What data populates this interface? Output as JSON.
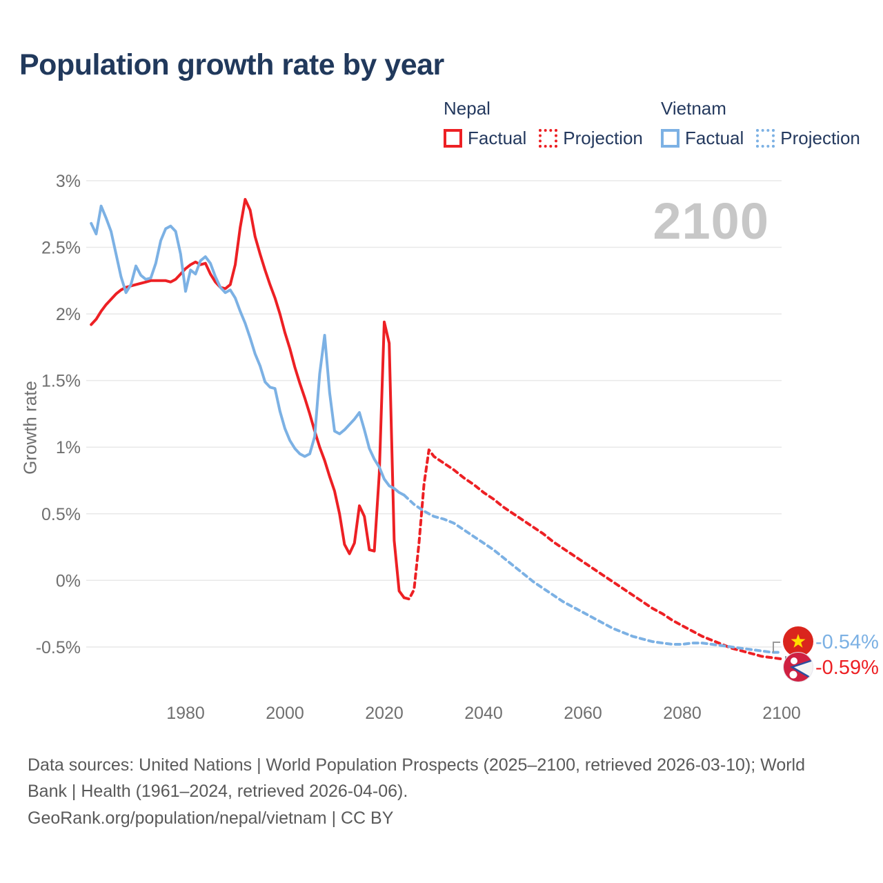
{
  "title": "Population growth rate by year",
  "watermark": "2100",
  "colors": {
    "nepal": "#ed2024",
    "vietnam": "#7cb1e4",
    "title_text": "#21395c",
    "legend_text": "#24395e",
    "axis_text": "#6f6f6f",
    "grid": "#e8e8e8",
    "watermark": "#c7c7c7",
    "connector": "#999999",
    "nepal_flag_crimson": "#cf2041",
    "nepal_flag_blue": "#2b4d9e",
    "vietnam_flag_red": "#da251d",
    "vietnam_flag_star": "#ffdf00"
  },
  "legend": {
    "groups": [
      {
        "name": "Nepal",
        "color": "#ed2024",
        "items": [
          {
            "label": "Factual",
            "style": "solid"
          },
          {
            "label": "Projection",
            "style": "dotted"
          }
        ]
      },
      {
        "name": "Vietnam",
        "color": "#7cb1e4",
        "items": [
          {
            "label": "Factual",
            "style": "solid"
          },
          {
            "label": "Projection",
            "style": "dotted"
          }
        ]
      }
    ]
  },
  "end_labels": [
    {
      "country": "Vietnam",
      "value": "-0.54%",
      "flag": "vietnam-flag-icon"
    },
    {
      "country": "Nepal",
      "value": "-0.59%",
      "flag": "nepal-flag-icon"
    }
  ],
  "caption": {
    "line1": "Data sources: United Nations | World Population Prospects (2025–2100, retrieved 2026-03-10); World Bank | Health (1961–2024, retrieved 2026-04-06).",
    "line2": "GeoRank.org/population/nepal/vietnam | CC BY"
  },
  "chart_data": {
    "type": "line",
    "title": "Population growth rate by year",
    "xlabel": "",
    "ylabel": "Growth rate",
    "grid": "horizontal-only",
    "legend_position": "top-right",
    "xlim": [
      1960,
      2114
    ],
    "ylim": [
      -0.75,
      3.05
    ],
    "x_ticks": [
      1980,
      2000,
      2020,
      2040,
      2060,
      2080,
      2100
    ],
    "y_ticks": {
      "labels": [
        "3%",
        "2.5%",
        "2%",
        "1.5%",
        "1%",
        "0.5%",
        "0%",
        "-0.5%"
      ],
      "values": [
        3,
        2.5,
        2,
        1.5,
        1,
        0.5,
        0,
        -0.5
      ]
    },
    "series": [
      {
        "name": "Nepal Factual",
        "country": "Nepal",
        "style": "solid",
        "color": "#ed2024",
        "points": [
          [
            1961,
            1.92
          ],
          [
            1962,
            1.96
          ],
          [
            1963,
            2.02
          ],
          [
            1964,
            2.07
          ],
          [
            1965,
            2.11
          ],
          [
            1966,
            2.15
          ],
          [
            1967,
            2.18
          ],
          [
            1968,
            2.2
          ],
          [
            1969,
            2.21
          ],
          [
            1970,
            2.22
          ],
          [
            1971,
            2.23
          ],
          [
            1972,
            2.24
          ],
          [
            1973,
            2.25
          ],
          [
            1974,
            2.25
          ],
          [
            1975,
            2.25
          ],
          [
            1976,
            2.25
          ],
          [
            1977,
            2.24
          ],
          [
            1978,
            2.26
          ],
          [
            1979,
            2.3
          ],
          [
            1980,
            2.34
          ],
          [
            1981,
            2.37
          ],
          [
            1982,
            2.39
          ],
          [
            1983,
            2.37
          ],
          [
            1984,
            2.38
          ],
          [
            1985,
            2.3
          ],
          [
            1986,
            2.24
          ],
          [
            1987,
            2.2
          ],
          [
            1988,
            2.19
          ],
          [
            1989,
            2.22
          ],
          [
            1990,
            2.37
          ],
          [
            1991,
            2.65
          ],
          [
            1992,
            2.86
          ],
          [
            1993,
            2.78
          ],
          [
            1994,
            2.58
          ],
          [
            1995,
            2.45
          ],
          [
            1996,
            2.33
          ],
          [
            1997,
            2.22
          ],
          [
            1998,
            2.12
          ],
          [
            1999,
            2.0
          ],
          [
            2000,
            1.86
          ],
          [
            2001,
            1.74
          ],
          [
            2002,
            1.6
          ],
          [
            2003,
            1.48
          ],
          [
            2004,
            1.37
          ],
          [
            2005,
            1.25
          ],
          [
            2006,
            1.12
          ],
          [
            2007,
            1.0
          ],
          [
            2008,
            0.9
          ],
          [
            2009,
            0.78
          ],
          [
            2010,
            0.67
          ],
          [
            2011,
            0.5
          ],
          [
            2012,
            0.27
          ],
          [
            2013,
            0.2
          ],
          [
            2014,
            0.28
          ],
          [
            2015,
            0.56
          ],
          [
            2016,
            0.48
          ],
          [
            2017,
            0.23
          ],
          [
            2018,
            0.22
          ],
          [
            2019,
            0.8
          ],
          [
            2020,
            1.94
          ],
          [
            2021,
            1.78
          ],
          [
            2022,
            0.3
          ],
          [
            2023,
            -0.08
          ],
          [
            2024,
            -0.13
          ]
        ]
      },
      {
        "name": "Nepal Projection",
        "country": "Nepal",
        "style": "dashed",
        "color": "#ed2024",
        "points": [
          [
            2024,
            -0.13
          ],
          [
            2025,
            -0.14
          ],
          [
            2026,
            -0.07
          ],
          [
            2027,
            0.28
          ],
          [
            2028,
            0.72
          ],
          [
            2029,
            0.98
          ],
          [
            2030,
            0.93
          ],
          [
            2032,
            0.88
          ],
          [
            2034,
            0.83
          ],
          [
            2036,
            0.77
          ],
          [
            2038,
            0.72
          ],
          [
            2040,
            0.66
          ],
          [
            2042,
            0.61
          ],
          [
            2044,
            0.55
          ],
          [
            2046,
            0.5
          ],
          [
            2048,
            0.45
          ],
          [
            2050,
            0.4
          ],
          [
            2052,
            0.35
          ],
          [
            2054,
            0.29
          ],
          [
            2056,
            0.24
          ],
          [
            2058,
            0.19
          ],
          [
            2060,
            0.14
          ],
          [
            2062,
            0.09
          ],
          [
            2064,
            0.04
          ],
          [
            2066,
            -0.01
          ],
          [
            2068,
            -0.06
          ],
          [
            2070,
            -0.11
          ],
          [
            2072,
            -0.16
          ],
          [
            2074,
            -0.21
          ],
          [
            2076,
            -0.25
          ],
          [
            2078,
            -0.3
          ],
          [
            2080,
            -0.34
          ],
          [
            2082,
            -0.38
          ],
          [
            2084,
            -0.42
          ],
          [
            2086,
            -0.45
          ],
          [
            2088,
            -0.48
          ],
          [
            2090,
            -0.51
          ],
          [
            2092,
            -0.53
          ],
          [
            2094,
            -0.55
          ],
          [
            2096,
            -0.57
          ],
          [
            2098,
            -0.58
          ],
          [
            2100,
            -0.59
          ]
        ]
      },
      {
        "name": "Vietnam Factual",
        "country": "Vietnam",
        "style": "solid",
        "color": "#7cb1e4",
        "points": [
          [
            1961,
            2.68
          ],
          [
            1962,
            2.6
          ],
          [
            1963,
            2.81
          ],
          [
            1964,
            2.72
          ],
          [
            1965,
            2.62
          ],
          [
            1966,
            2.45
          ],
          [
            1967,
            2.28
          ],
          [
            1968,
            2.16
          ],
          [
            1969,
            2.22
          ],
          [
            1970,
            2.36
          ],
          [
            1971,
            2.29
          ],
          [
            1972,
            2.26
          ],
          [
            1973,
            2.27
          ],
          [
            1974,
            2.38
          ],
          [
            1975,
            2.55
          ],
          [
            1976,
            2.64
          ],
          [
            1977,
            2.66
          ],
          [
            1978,
            2.62
          ],
          [
            1979,
            2.45
          ],
          [
            1980,
            2.17
          ],
          [
            1981,
            2.33
          ],
          [
            1982,
            2.3
          ],
          [
            1983,
            2.4
          ],
          [
            1984,
            2.43
          ],
          [
            1985,
            2.38
          ],
          [
            1986,
            2.28
          ],
          [
            1987,
            2.2
          ],
          [
            1988,
            2.16
          ],
          [
            1989,
            2.18
          ],
          [
            1990,
            2.12
          ],
          [
            1991,
            2.02
          ],
          [
            1992,
            1.93
          ],
          [
            1993,
            1.82
          ],
          [
            1994,
            1.7
          ],
          [
            1995,
            1.61
          ],
          [
            1996,
            1.49
          ],
          [
            1997,
            1.45
          ],
          [
            1998,
            1.44
          ],
          [
            1999,
            1.27
          ],
          [
            2000,
            1.14
          ],
          [
            2001,
            1.05
          ],
          [
            2002,
            0.99
          ],
          [
            2003,
            0.95
          ],
          [
            2004,
            0.93
          ],
          [
            2005,
            0.95
          ],
          [
            2006,
            1.08
          ],
          [
            2007,
            1.55
          ],
          [
            2008,
            1.84
          ],
          [
            2009,
            1.41
          ],
          [
            2010,
            1.12
          ],
          [
            2011,
            1.1
          ],
          [
            2012,
            1.13
          ],
          [
            2013,
            1.17
          ],
          [
            2014,
            1.21
          ],
          [
            2015,
            1.26
          ],
          [
            2016,
            1.13
          ],
          [
            2017,
            0.99
          ],
          [
            2018,
            0.91
          ],
          [
            2019,
            0.85
          ],
          [
            2020,
            0.76
          ],
          [
            2021,
            0.71
          ],
          [
            2022,
            0.69
          ],
          [
            2023,
            0.66
          ],
          [
            2024,
            0.64
          ]
        ]
      },
      {
        "name": "Vietnam Projection",
        "country": "Vietnam",
        "style": "dashed",
        "color": "#7cb1e4",
        "points": [
          [
            2024,
            0.64
          ],
          [
            2026,
            0.57
          ],
          [
            2028,
            0.52
          ],
          [
            2030,
            0.48
          ],
          [
            2032,
            0.46
          ],
          [
            2034,
            0.43
          ],
          [
            2036,
            0.38
          ],
          [
            2038,
            0.33
          ],
          [
            2040,
            0.28
          ],
          [
            2042,
            0.23
          ],
          [
            2044,
            0.17
          ],
          [
            2046,
            0.11
          ],
          [
            2048,
            0.05
          ],
          [
            2050,
            -0.01
          ],
          [
            2052,
            -0.06
          ],
          [
            2054,
            -0.11
          ],
          [
            2056,
            -0.16
          ],
          [
            2058,
            -0.2
          ],
          [
            2060,
            -0.24
          ],
          [
            2062,
            -0.28
          ],
          [
            2064,
            -0.32
          ],
          [
            2066,
            -0.36
          ],
          [
            2068,
            -0.39
          ],
          [
            2070,
            -0.42
          ],
          [
            2072,
            -0.44
          ],
          [
            2074,
            -0.46
          ],
          [
            2076,
            -0.47
          ],
          [
            2078,
            -0.48
          ],
          [
            2080,
            -0.48
          ],
          [
            2082,
            -0.47
          ],
          [
            2084,
            -0.47
          ],
          [
            2086,
            -0.48
          ],
          [
            2088,
            -0.49
          ],
          [
            2090,
            -0.5
          ],
          [
            2092,
            -0.51
          ],
          [
            2094,
            -0.52
          ],
          [
            2096,
            -0.53
          ],
          [
            2098,
            -0.54
          ],
          [
            2100,
            -0.54
          ]
        ]
      }
    ],
    "end_annotations": [
      {
        "series": "Vietnam Projection",
        "x": 2100,
        "label": "-0.54%"
      },
      {
        "series": "Nepal Projection",
        "x": 2100,
        "label": "-0.59%"
      }
    ]
  }
}
